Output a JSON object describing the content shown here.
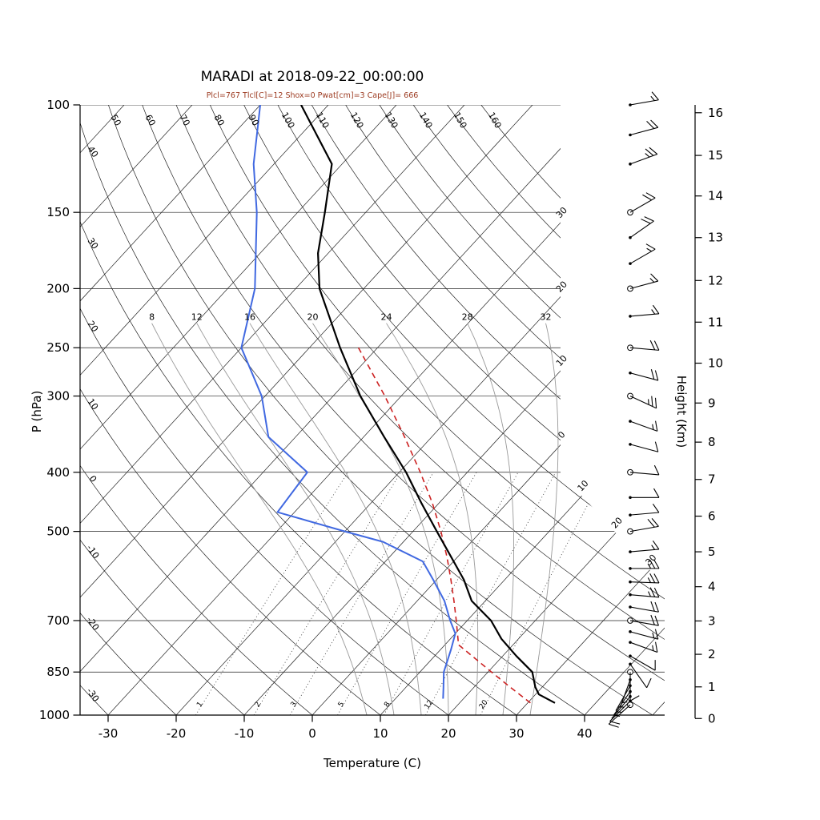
{
  "title": "MARADI at 2018-09-22_00:00:00",
  "subtitle": "Plcl=767 Tlcl[C]=12 Shox=0 Pwat[cm]=3 Cape[J]= 666",
  "colors": {
    "temperature": "#000000",
    "dewpoint": "#4169e1",
    "parcel": "#cc2222",
    "subtitle": "#9c3a20",
    "moist_adiabat": "#999999",
    "mixing_ratio": "#444444",
    "grid": "#222222",
    "axis": "#000000"
  },
  "axes": {
    "pressure_label": "P (hPa)",
    "temperature_label": "Temperature (C)",
    "height_label": "Height (Km)",
    "pressure_ticks": [
      100,
      150,
      200,
      250,
      300,
      400,
      500,
      700,
      850,
      1000
    ],
    "temperature_ticks": [
      -30,
      -20,
      -10,
      0,
      10,
      20,
      30,
      40
    ],
    "height_ticks": [
      {
        "km": 0,
        "p": 1013
      },
      {
        "km": 1,
        "p": 899
      },
      {
        "km": 2,
        "p": 795
      },
      {
        "km": 3,
        "p": 701
      },
      {
        "km": 4,
        "p": 616
      },
      {
        "km": 5,
        "p": 540
      },
      {
        "km": 6,
        "p": 472
      },
      {
        "km": 7,
        "p": 411
      },
      {
        "km": 8,
        "p": 357
      },
      {
        "km": 9,
        "p": 308
      },
      {
        "km": 10,
        "p": 265
      },
      {
        "km": 11,
        "p": 227
      },
      {
        "km": 12,
        "p": 194
      },
      {
        "km": 13,
        "p": 165
      },
      {
        "km": 14,
        "p": 141
      },
      {
        "km": 15,
        "p": 121
      },
      {
        "km": 16,
        "p": 103
      }
    ]
  },
  "grid": {
    "isotherms_c": {
      "min": -110,
      "max": 50,
      "step": 10
    },
    "isotherm_edge_labels_c": [
      -30,
      -20,
      -10,
      0,
      10,
      20,
      30
    ],
    "dry_adiabats_c": {
      "min": -30,
      "max": 160,
      "step": 10
    },
    "dry_adiabat_top_labels": [
      50,
      60,
      70,
      80,
      90,
      100,
      110,
      120,
      130,
      140,
      150,
      160
    ],
    "dry_adiabat_left_labels": [
      40,
      30,
      20,
      10,
      0,
      -10,
      -20,
      -30
    ],
    "moist_adiabats_c": [
      8,
      12,
      16,
      20,
      24,
      28,
      32
    ],
    "mixing_ratios_g_kg": [
      1,
      2,
      3,
      5,
      8,
      12,
      20
    ]
  },
  "chart_data": {
    "type": "line",
    "variant": "skew-t-log-p",
    "station": "MARADI",
    "valid_time": "2018-09-22_00:00:00",
    "indices": {
      "Plcl": 767,
      "Tlcl_C": 12,
      "Shox": 0,
      "Pwat_cm": 3,
      "Cape_J": 666
    },
    "x_axis": {
      "label": "Temperature (C)",
      "unit": "C",
      "ticks": [
        -30,
        -20,
        -10,
        0,
        10,
        20,
        30,
        40
      ]
    },
    "y_axis": {
      "label": "P (hPa)",
      "scale": "log",
      "range": [
        100,
        1000
      ],
      "ticks": [
        100,
        150,
        200,
        250,
        300,
        400,
        500,
        700,
        850,
        1000
      ]
    },
    "height_axis_km": [
      0,
      1,
      2,
      3,
      4,
      5,
      6,
      7,
      8,
      9,
      10,
      11,
      12,
      13,
      14,
      15,
      16
    ],
    "series": [
      {
        "name": "temperature",
        "color": "#000000",
        "width": 2.2,
        "dash": "none",
        "points_p_t": [
          [
            955,
            34.0
          ],
          [
            925,
            30.5
          ],
          [
            900,
            29.0
          ],
          [
            850,
            26.5
          ],
          [
            800,
            22.0
          ],
          [
            750,
            17.5
          ],
          [
            700,
            13.5
          ],
          [
            650,
            8.0
          ],
          [
            600,
            4.0
          ],
          [
            550,
            -1.0
          ],
          [
            500,
            -6.5
          ],
          [
            450,
            -12.5
          ],
          [
            400,
            -19.0
          ],
          [
            350,
            -27.0
          ],
          [
            300,
            -36.0
          ],
          [
            250,
            -45.5
          ],
          [
            200,
            -56.5
          ],
          [
            175,
            -61.5
          ],
          [
            150,
            -66.0
          ],
          [
            125,
            -71.5
          ],
          [
            100,
            -84.0
          ]
        ]
      },
      {
        "name": "dewpoint",
        "color": "#4169e1",
        "width": 2.0,
        "dash": "none",
        "points_p_t": [
          [
            940,
            17.0
          ],
          [
            900,
            15.5
          ],
          [
            850,
            13.5
          ],
          [
            780,
            11.5
          ],
          [
            735,
            10.0
          ],
          [
            700,
            7.5
          ],
          [
            650,
            4.0
          ],
          [
            600,
            -0.5
          ],
          [
            560,
            -4.5
          ],
          [
            520,
            -13.0
          ],
          [
            500,
            -20.0
          ],
          [
            465,
            -32.5
          ],
          [
            400,
            -33.5
          ],
          [
            350,
            -44.0
          ],
          [
            300,
            -50.5
          ],
          [
            250,
            -60.0
          ],
          [
            200,
            -66.0
          ],
          [
            150,
            -76.0
          ],
          [
            125,
            -83.0
          ],
          [
            100,
            -90.0
          ]
        ]
      },
      {
        "name": "parcel",
        "color": "#cc2222",
        "width": 1.6,
        "dash": "7,5",
        "points_p_t": [
          [
            955,
            30.4
          ],
          [
            900,
            25.3
          ],
          [
            850,
            20.5
          ],
          [
            800,
            15.5
          ],
          [
            767,
            12.0
          ],
          [
            700,
            8.4
          ],
          [
            650,
            5.4
          ],
          [
            600,
            2.1
          ],
          [
            550,
            -1.6
          ],
          [
            500,
            -5.9
          ],
          [
            450,
            -10.9
          ],
          [
            400,
            -16.9
          ],
          [
            350,
            -24.0
          ],
          [
            300,
            -32.4
          ],
          [
            250,
            -42.8
          ]
        ]
      }
    ],
    "wind_barbs": {
      "levels": [
        {
          "p": 100,
          "spd_kt": 15,
          "dir_deg": 80,
          "marker": "dot"
        },
        {
          "p": 112,
          "spd_kt": 20,
          "dir_deg": 75,
          "marker": "dot"
        },
        {
          "p": 125,
          "spd_kt": 25,
          "dir_deg": 70,
          "marker": "dot"
        },
        {
          "p": 150,
          "spd_kt": 20,
          "dir_deg": 60,
          "marker": "circle"
        },
        {
          "p": 165,
          "spd_kt": 20,
          "dir_deg": 55,
          "marker": "dot"
        },
        {
          "p": 182,
          "spd_kt": 15,
          "dir_deg": 60,
          "marker": "dot"
        },
        {
          "p": 200,
          "spd_kt": 15,
          "dir_deg": 75,
          "marker": "circle"
        },
        {
          "p": 222,
          "spd_kt": 15,
          "dir_deg": 85,
          "marker": "dot"
        },
        {
          "p": 250,
          "spd_kt": 20,
          "dir_deg": 95,
          "marker": "circle"
        },
        {
          "p": 275,
          "spd_kt": 20,
          "dir_deg": 105,
          "marker": "dot"
        },
        {
          "p": 300,
          "spd_kt": 25,
          "dir_deg": 115,
          "marker": "circle"
        },
        {
          "p": 330,
          "spd_kt": 15,
          "dir_deg": 110,
          "marker": "dot"
        },
        {
          "p": 360,
          "spd_kt": 10,
          "dir_deg": 105,
          "marker": "dot"
        },
        {
          "p": 400,
          "spd_kt": 10,
          "dir_deg": 95,
          "marker": "circle"
        },
        {
          "p": 440,
          "spd_kt": 10,
          "dir_deg": 90,
          "marker": "dot"
        },
        {
          "p": 470,
          "spd_kt": 10,
          "dir_deg": 85,
          "marker": "dot"
        },
        {
          "p": 500,
          "spd_kt": 20,
          "dir_deg": 80,
          "marker": "circle"
        },
        {
          "p": 540,
          "spd_kt": 15,
          "dir_deg": 85,
          "marker": "dot"
        },
        {
          "p": 575,
          "spd_kt": 25,
          "dir_deg": 90,
          "marker": "dot"
        },
        {
          "p": 605,
          "spd_kt": 25,
          "dir_deg": 92,
          "marker": "dot"
        },
        {
          "p": 635,
          "spd_kt": 25,
          "dir_deg": 95,
          "marker": "dot"
        },
        {
          "p": 665,
          "spd_kt": 20,
          "dir_deg": 100,
          "marker": "dot"
        },
        {
          "p": 700,
          "spd_kt": 20,
          "dir_deg": 100,
          "marker": "circle"
        },
        {
          "p": 730,
          "spd_kt": 15,
          "dir_deg": 105,
          "marker": "dot"
        },
        {
          "p": 760,
          "spd_kt": 15,
          "dir_deg": 110,
          "marker": "dot"
        },
        {
          "p": 800,
          "spd_kt": 10,
          "dir_deg": 120,
          "marker": "dot"
        },
        {
          "p": 825,
          "spd_kt": 10,
          "dir_deg": 145,
          "marker": "dot"
        },
        {
          "p": 850,
          "spd_kt": 10,
          "dir_deg": 180,
          "marker": "circle"
        },
        {
          "p": 875,
          "spd_kt": 5,
          "dir_deg": 200,
          "marker": "dot"
        },
        {
          "p": 895,
          "spd_kt": 5,
          "dir_deg": 210,
          "marker": "dot"
        },
        {
          "p": 915,
          "spd_kt": 5,
          "dir_deg": 215,
          "marker": "dot"
        },
        {
          "p": 932,
          "spd_kt": 5,
          "dir_deg": 220,
          "marker": "dot"
        },
        {
          "p": 948,
          "spd_kt": 10,
          "dir_deg": 225,
          "marker": "dot"
        },
        {
          "p": 962,
          "spd_kt": 10,
          "dir_deg": 228,
          "marker": "circle"
        }
      ]
    }
  }
}
